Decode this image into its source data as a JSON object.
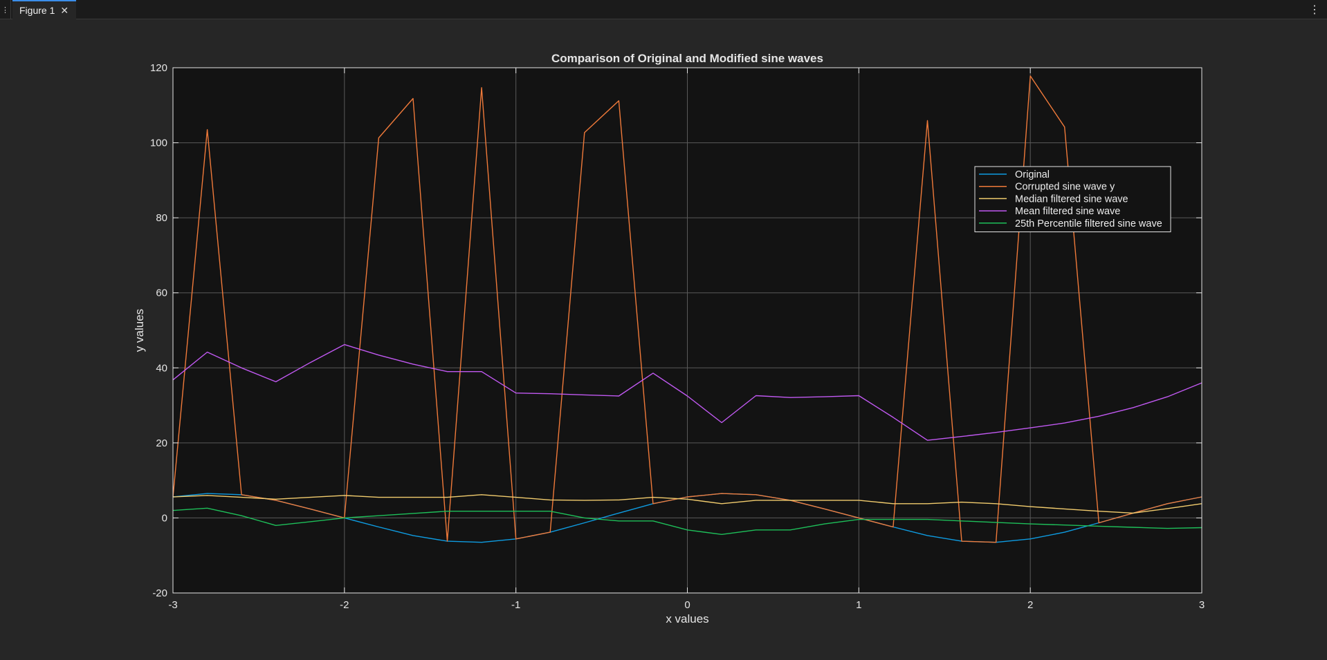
{
  "window": {
    "tab_title": "Figure 1"
  },
  "icons": {
    "grip": "panel-grip-icon",
    "close": "close-icon",
    "menu": "vertical-ellipsis-icon"
  },
  "colors": {
    "background": "#262626",
    "axes_background": "#131313",
    "axis": "#e6e6e6",
    "grid": "#5a5a5a",
    "accent": "#3b8eea"
  },
  "chart_data": {
    "type": "line",
    "title": "Comparison of Original and Modified sine waves",
    "xlabel": "x values",
    "ylabel": "y values",
    "xlim": [
      -3,
      3
    ],
    "ylim": [
      -20,
      120
    ],
    "xticks": [
      -3,
      -2,
      -1,
      0,
      1,
      2,
      3
    ],
    "yticks": [
      -20,
      0,
      20,
      40,
      60,
      80,
      100,
      120
    ],
    "grid": true,
    "legend_position": "top-right",
    "x": [
      -3,
      -2.8,
      -2.6,
      -2.4,
      -2.2,
      -2,
      -1.8,
      -1.6,
      -1.4,
      -1.2,
      -1,
      -0.8,
      -0.6,
      -0.4,
      -0.2,
      0,
      0.2,
      0.4,
      0.6,
      0.8,
      1,
      1.2,
      1.4,
      1.6,
      1.8,
      2,
      2.2,
      2.4,
      2.6,
      2.8,
      3
    ],
    "series": [
      {
        "name": "Original",
        "color": "#0e9ce2",
        "values": [
          5.6,
          6.5,
          6.2,
          4.7,
          2.4,
          0,
          -2.4,
          -4.7,
          -6.2,
          -6.5,
          -5.6,
          -3.8,
          -1.3,
          1.3,
          3.8,
          5.6,
          6.5,
          6.2,
          4.7,
          2.4,
          0,
          -2.4,
          -4.7,
          -6.2,
          -6.5,
          -5.6,
          -3.8,
          -1.3,
          1.3,
          3.8,
          5.6
        ]
      },
      {
        "name": "Corrupted sine wave y",
        "color": "#f07a3a",
        "values": [
          5.6,
          103.5,
          6.2,
          4.7,
          2.4,
          0,
          101.3,
          111.8,
          -6.2,
          114.7,
          -5.6,
          -3.8,
          102.7,
          111.2,
          3.8,
          5.6,
          6.5,
          6.2,
          4.7,
          2.4,
          0,
          -2.4,
          105.9,
          -6.2,
          -6.5,
          117.8,
          104.2,
          -1.3,
          1.3,
          3.8,
          5.6
        ]
      },
      {
        "name": "Median filtered sine wave",
        "color": "#f3cd6e",
        "values": [
          5.6,
          6,
          5.5,
          5,
          5.5,
          6,
          5.5,
          5.5,
          5.5,
          6.2,
          5.5,
          4.8,
          4.7,
          4.8,
          5.5,
          5,
          3.8,
          4.7,
          4.7,
          4.7,
          4.7,
          3.8,
          3.8,
          4.2,
          3.8,
          3,
          2.4,
          1.8,
          1.3,
          2.5,
          3.8
        ]
      },
      {
        "name": "Mean filtered sine wave",
        "color": "#c159f2",
        "values": [
          36.8,
          44.2,
          40,
          36.3,
          41.4,
          46.2,
          43.4,
          41,
          39,
          39,
          33.3,
          33.1,
          32.8,
          32.5,
          38.6,
          32.5,
          25.4,
          32.6,
          32.1,
          32.3,
          32.6,
          26.8,
          20.7,
          21.7,
          22.8,
          24,
          25.3,
          27.1,
          29.4,
          32.3,
          36
        ]
      },
      {
        "name": "25th Percentile filtered sine wave",
        "color": "#1ec05a",
        "values": [
          2,
          2.6,
          0.6,
          -2,
          -1,
          0,
          0.6,
          1.2,
          1.8,
          1.8,
          1.8,
          1.8,
          0,
          -0.8,
          -0.8,
          -3.2,
          -4.4,
          -3.2,
          -3.2,
          -1.6,
          -0.4,
          -0.4,
          -0.4,
          -0.8,
          -1.2,
          -1.6,
          -1.9,
          -2.2,
          -2.5,
          -2.8,
          -2.6
        ]
      }
    ]
  }
}
